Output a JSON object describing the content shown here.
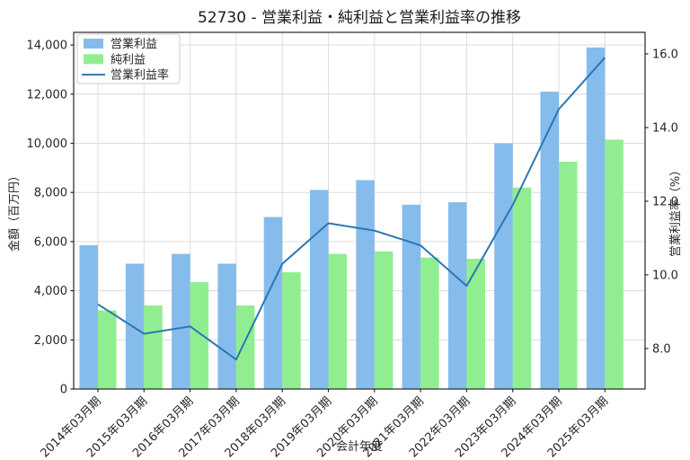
{
  "title": "52730 - 営業利益・純利益と営業利益率の推移",
  "colors": {
    "operating_profit": "#85BCEC",
    "net_profit": "#90EE90",
    "margin_line": "#2977B6",
    "grid": "#DCDCDC",
    "axis": "#262626",
    "text": "#262626",
    "legend_border": "#CCCCCC",
    "legend_bg": "#FFFFFF"
  },
  "legend": {
    "items": [
      {
        "label": "営業利益",
        "marker": "bar",
        "color_key": "operating_profit"
      },
      {
        "label": "純利益",
        "marker": "bar",
        "color_key": "net_profit"
      },
      {
        "label": "営業利益率",
        "marker": "line",
        "color_key": "margin_line"
      }
    ],
    "position": "upper left"
  },
  "chart_data": {
    "type": "bar+line",
    "title": "52730 - 営業利益・純利益と営業利益率の推移",
    "xlabel": "会計年度",
    "ylabel_left": "金額（百万円）",
    "ylabel_right": "営業利益率（%）",
    "grid": true,
    "legend_position": "upper left",
    "categories": [
      "2014年03月期",
      "2015年03月期",
      "2016年03月期",
      "2017年03月期",
      "2018年03月期",
      "2019年03月期",
      "2020年03月期",
      "2021年03月期",
      "2022年03月期",
      "2023年03月期",
      "2024年03月期",
      "2025年03月期"
    ],
    "series": [
      {
        "name": "営業利益",
        "type": "bar",
        "axis": "left",
        "values": [
          5850,
          5100,
          5500,
          5100,
          7000,
          8100,
          8500,
          7500,
          7600,
          10000,
          12100,
          13900
        ]
      },
      {
        "name": "純利益",
        "type": "bar",
        "axis": "left",
        "values": [
          3200,
          3400,
          4350,
          3400,
          4750,
          5500,
          5600,
          5350,
          5300,
          8200,
          9250,
          10150
        ]
      },
      {
        "name": "営業利益率",
        "type": "line",
        "axis": "right",
        "values": [
          9.2,
          8.4,
          8.6,
          7.7,
          10.3,
          11.4,
          11.2,
          10.8,
          9.7,
          11.9,
          14.5,
          15.9
        ]
      }
    ],
    "left_axis": {
      "min": 0,
      "max": 14515,
      "ticks": [
        0,
        2000,
        4000,
        6000,
        8000,
        10000,
        12000,
        14000
      ],
      "tick_labels": [
        "0",
        "2,000",
        "4,000",
        "6,000",
        "8,000",
        "10,000",
        "12,000",
        "14,000"
      ]
    },
    "right_axis": {
      "min": 6.9,
      "max": 16.585,
      "ticks": [
        8,
        10,
        12,
        14,
        16
      ],
      "tick_labels": [
        "8.0",
        "10.0",
        "12.0",
        "14.0",
        "16.0"
      ]
    }
  }
}
